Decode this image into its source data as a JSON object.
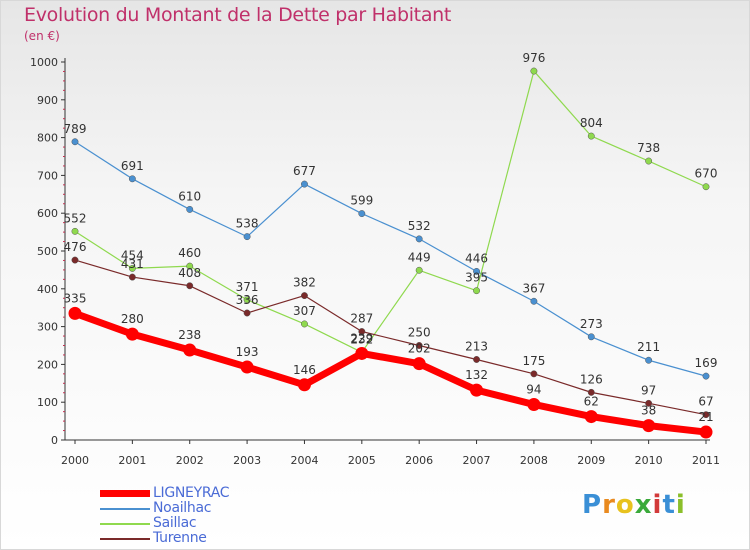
{
  "header": {
    "title": "Evolution du Montant de la Dette par Habitant",
    "unit": "(en €)"
  },
  "logo": {
    "text": "Proxiti",
    "colors": [
      "#3a8fd6",
      "#e98a1f",
      "#e8c21e",
      "#3aaa3a",
      "#d23a3a",
      "#3a8fd6",
      "#8bbf2a"
    ]
  },
  "chart_data": {
    "type": "line",
    "title": "Evolution du Montant de la Dette par Habitant",
    "ylabel": "(en €)",
    "xlabel": "",
    "x": [
      "2000",
      "2001",
      "2002",
      "2003",
      "2004",
      "2005",
      "2006",
      "2007",
      "2008",
      "2009",
      "2010",
      "2011"
    ],
    "ylim": [
      0,
      1000
    ],
    "yticks": [
      "0",
      "100",
      "200",
      "300",
      "400",
      "500",
      "600",
      "700",
      "800",
      "900",
      "1000"
    ],
    "grid": false,
    "legend": "bottom-left",
    "series": [
      {
        "name": "LIGNEYRAC",
        "color": "#ff0000",
        "emphasis": true,
        "values": [
          335,
          280,
          238,
          193,
          146,
          229,
          202,
          132,
          94,
          62,
          38,
          21
        ]
      },
      {
        "name": "Noailhac",
        "color": "#4a90d0",
        "values": [
          789,
          691,
          610,
          538,
          677,
          599,
          532,
          446,
          367,
          273,
          211,
          169
        ]
      },
      {
        "name": "Saillac",
        "color": "#8fd94e",
        "values": [
          552,
          454,
          460,
          371,
          307,
          232,
          449,
          395,
          976,
          804,
          738,
          670
        ]
      },
      {
        "name": "Turenne",
        "color": "#7a2a2a",
        "values": [
          476,
          431,
          408,
          336,
          382,
          287,
          250,
          213,
          175,
          126,
          97,
          67
        ]
      }
    ]
  }
}
